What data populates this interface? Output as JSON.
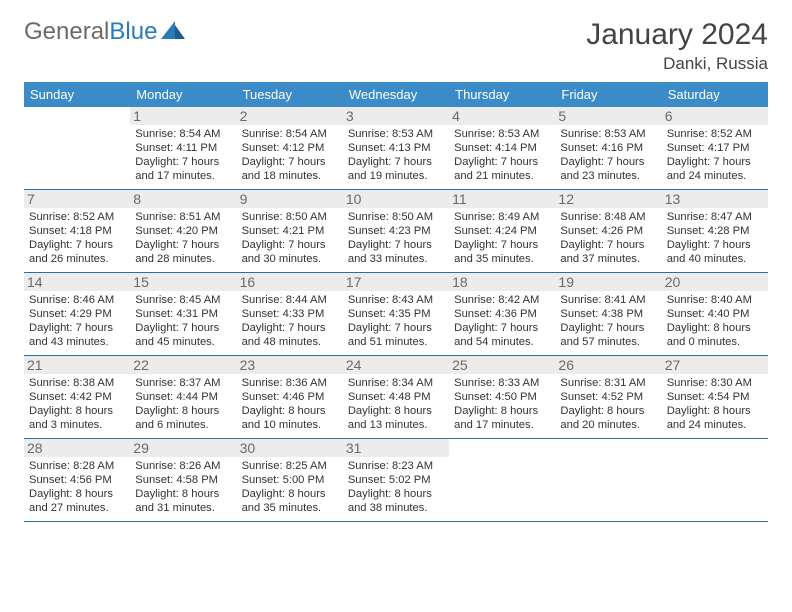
{
  "brand": {
    "part1": "General",
    "part2": "Blue"
  },
  "title": "January 2024",
  "location": "Danki, Russia",
  "colors": {
    "header_bg": "#3b8bc8",
    "header_text": "#ffffff",
    "daynum_bg": "#ececec",
    "daynum_text": "#6a6a6a",
    "rule": "#2a6fa8",
    "body_text": "#333333",
    "brand_gray": "#6a6a6a",
    "brand_blue": "#2a7ab8"
  },
  "dayNames": [
    "Sunday",
    "Monday",
    "Tuesday",
    "Wednesday",
    "Thursday",
    "Friday",
    "Saturday"
  ],
  "weeks": [
    [
      null,
      {
        "n": "1",
        "sr": "Sunrise: 8:54 AM",
        "ss": "Sunset: 4:11 PM",
        "d1": "Daylight: 7 hours",
        "d2": "and 17 minutes."
      },
      {
        "n": "2",
        "sr": "Sunrise: 8:54 AM",
        "ss": "Sunset: 4:12 PM",
        "d1": "Daylight: 7 hours",
        "d2": "and 18 minutes."
      },
      {
        "n": "3",
        "sr": "Sunrise: 8:53 AM",
        "ss": "Sunset: 4:13 PM",
        "d1": "Daylight: 7 hours",
        "d2": "and 19 minutes."
      },
      {
        "n": "4",
        "sr": "Sunrise: 8:53 AM",
        "ss": "Sunset: 4:14 PM",
        "d1": "Daylight: 7 hours",
        "d2": "and 21 minutes."
      },
      {
        "n": "5",
        "sr": "Sunrise: 8:53 AM",
        "ss": "Sunset: 4:16 PM",
        "d1": "Daylight: 7 hours",
        "d2": "and 23 minutes."
      },
      {
        "n": "6",
        "sr": "Sunrise: 8:52 AM",
        "ss": "Sunset: 4:17 PM",
        "d1": "Daylight: 7 hours",
        "d2": "and 24 minutes."
      }
    ],
    [
      {
        "n": "7",
        "sr": "Sunrise: 8:52 AM",
        "ss": "Sunset: 4:18 PM",
        "d1": "Daylight: 7 hours",
        "d2": "and 26 minutes."
      },
      {
        "n": "8",
        "sr": "Sunrise: 8:51 AM",
        "ss": "Sunset: 4:20 PM",
        "d1": "Daylight: 7 hours",
        "d2": "and 28 minutes."
      },
      {
        "n": "9",
        "sr": "Sunrise: 8:50 AM",
        "ss": "Sunset: 4:21 PM",
        "d1": "Daylight: 7 hours",
        "d2": "and 30 minutes."
      },
      {
        "n": "10",
        "sr": "Sunrise: 8:50 AM",
        "ss": "Sunset: 4:23 PM",
        "d1": "Daylight: 7 hours",
        "d2": "and 33 minutes."
      },
      {
        "n": "11",
        "sr": "Sunrise: 8:49 AM",
        "ss": "Sunset: 4:24 PM",
        "d1": "Daylight: 7 hours",
        "d2": "and 35 minutes."
      },
      {
        "n": "12",
        "sr": "Sunrise: 8:48 AM",
        "ss": "Sunset: 4:26 PM",
        "d1": "Daylight: 7 hours",
        "d2": "and 37 minutes."
      },
      {
        "n": "13",
        "sr": "Sunrise: 8:47 AM",
        "ss": "Sunset: 4:28 PM",
        "d1": "Daylight: 7 hours",
        "d2": "and 40 minutes."
      }
    ],
    [
      {
        "n": "14",
        "sr": "Sunrise: 8:46 AM",
        "ss": "Sunset: 4:29 PM",
        "d1": "Daylight: 7 hours",
        "d2": "and 43 minutes."
      },
      {
        "n": "15",
        "sr": "Sunrise: 8:45 AM",
        "ss": "Sunset: 4:31 PM",
        "d1": "Daylight: 7 hours",
        "d2": "and 45 minutes."
      },
      {
        "n": "16",
        "sr": "Sunrise: 8:44 AM",
        "ss": "Sunset: 4:33 PM",
        "d1": "Daylight: 7 hours",
        "d2": "and 48 minutes."
      },
      {
        "n": "17",
        "sr": "Sunrise: 8:43 AM",
        "ss": "Sunset: 4:35 PM",
        "d1": "Daylight: 7 hours",
        "d2": "and 51 minutes."
      },
      {
        "n": "18",
        "sr": "Sunrise: 8:42 AM",
        "ss": "Sunset: 4:36 PM",
        "d1": "Daylight: 7 hours",
        "d2": "and 54 minutes."
      },
      {
        "n": "19",
        "sr": "Sunrise: 8:41 AM",
        "ss": "Sunset: 4:38 PM",
        "d1": "Daylight: 7 hours",
        "d2": "and 57 minutes."
      },
      {
        "n": "20",
        "sr": "Sunrise: 8:40 AM",
        "ss": "Sunset: 4:40 PM",
        "d1": "Daylight: 8 hours",
        "d2": "and 0 minutes."
      }
    ],
    [
      {
        "n": "21",
        "sr": "Sunrise: 8:38 AM",
        "ss": "Sunset: 4:42 PM",
        "d1": "Daylight: 8 hours",
        "d2": "and 3 minutes."
      },
      {
        "n": "22",
        "sr": "Sunrise: 8:37 AM",
        "ss": "Sunset: 4:44 PM",
        "d1": "Daylight: 8 hours",
        "d2": "and 6 minutes."
      },
      {
        "n": "23",
        "sr": "Sunrise: 8:36 AM",
        "ss": "Sunset: 4:46 PM",
        "d1": "Daylight: 8 hours",
        "d2": "and 10 minutes."
      },
      {
        "n": "24",
        "sr": "Sunrise: 8:34 AM",
        "ss": "Sunset: 4:48 PM",
        "d1": "Daylight: 8 hours",
        "d2": "and 13 minutes."
      },
      {
        "n": "25",
        "sr": "Sunrise: 8:33 AM",
        "ss": "Sunset: 4:50 PM",
        "d1": "Daylight: 8 hours",
        "d2": "and 17 minutes."
      },
      {
        "n": "26",
        "sr": "Sunrise: 8:31 AM",
        "ss": "Sunset: 4:52 PM",
        "d1": "Daylight: 8 hours",
        "d2": "and 20 minutes."
      },
      {
        "n": "27",
        "sr": "Sunrise: 8:30 AM",
        "ss": "Sunset: 4:54 PM",
        "d1": "Daylight: 8 hours",
        "d2": "and 24 minutes."
      }
    ],
    [
      {
        "n": "28",
        "sr": "Sunrise: 8:28 AM",
        "ss": "Sunset: 4:56 PM",
        "d1": "Daylight: 8 hours",
        "d2": "and 27 minutes."
      },
      {
        "n": "29",
        "sr": "Sunrise: 8:26 AM",
        "ss": "Sunset: 4:58 PM",
        "d1": "Daylight: 8 hours",
        "d2": "and 31 minutes."
      },
      {
        "n": "30",
        "sr": "Sunrise: 8:25 AM",
        "ss": "Sunset: 5:00 PM",
        "d1": "Daylight: 8 hours",
        "d2": "and 35 minutes."
      },
      {
        "n": "31",
        "sr": "Sunrise: 8:23 AM",
        "ss": "Sunset: 5:02 PM",
        "d1": "Daylight: 8 hours",
        "d2": "and 38 minutes."
      },
      null,
      null,
      null
    ]
  ]
}
